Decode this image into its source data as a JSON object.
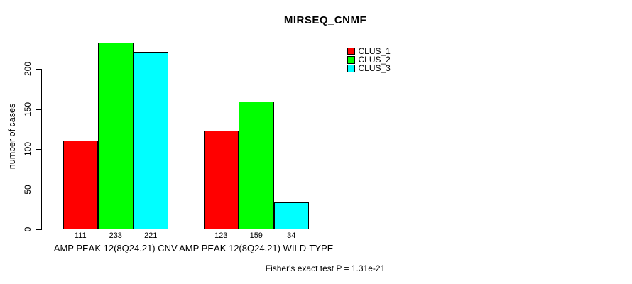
{
  "title": "MIRSEQ_CNMF",
  "annotation": "Fisher's exact test P = 1.31e-21",
  "chart_data": {
    "type": "bar",
    "title": "MIRSEQ_CNMF",
    "xlabel": "",
    "ylabel": "number of cases",
    "categories": [
      "AMP PEAK 12(8Q24.21) CNV",
      "AMP PEAK 12(8Q24.21) WILD-TYPE"
    ],
    "series": [
      {
        "name": "CLUS_1",
        "color": "#FF0000",
        "values": [
          111,
          123
        ]
      },
      {
        "name": "CLUS_2",
        "color": "#00FF00",
        "values": [
          233,
          159
        ]
      },
      {
        "name": "CLUS_3",
        "color": "#00FFFF",
        "values": [
          221,
          34
        ]
      }
    ],
    "bar_value_labels": [
      [
        111,
        233,
        221
      ],
      [
        123,
        159,
        34
      ]
    ],
    "yticks": [
      0,
      50,
      100,
      150,
      200
    ],
    "ylim": [
      0,
      233
    ],
    "grid": false,
    "legend_position": "top-right",
    "annotation": "Fisher's exact test P = 1.31e-21"
  }
}
